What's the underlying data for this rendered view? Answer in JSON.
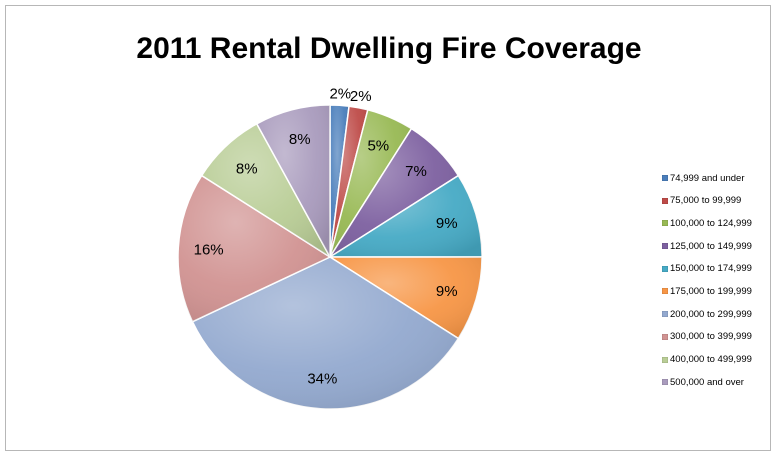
{
  "chart_data": {
    "type": "pie",
    "title": "2011 Rental Dwelling Fire Coverage",
    "categories": [
      "74,999 and under",
      "75,000 to 99,999",
      "100,000 to 124,999",
      "125,000 to 149,999",
      "150,000 to 174,999",
      "175,000 to 199,999",
      "200,000 to 299,999",
      "300,000 to 399,999",
      "400,000 to 499,999",
      "500,000 and over"
    ],
    "values": [
      2,
      2,
      5,
      7,
      9,
      9,
      34,
      16,
      8,
      8
    ],
    "data_labels": [
      "2%",
      "2%",
      "5%",
      "7%",
      "9%",
      "9%",
      "34%",
      "16%",
      "8%",
      "8%"
    ],
    "colors": [
      "#4a7ebb",
      "#be4b48",
      "#98b954",
      "#7d60a0",
      "#46aac5",
      "#f79646",
      "#93a9cf",
      "#d19392",
      "#b9cd96",
      "#a99bbd"
    ],
    "legend_position": "right",
    "start_angle_deg": 0,
    "direction": "clockwise"
  }
}
